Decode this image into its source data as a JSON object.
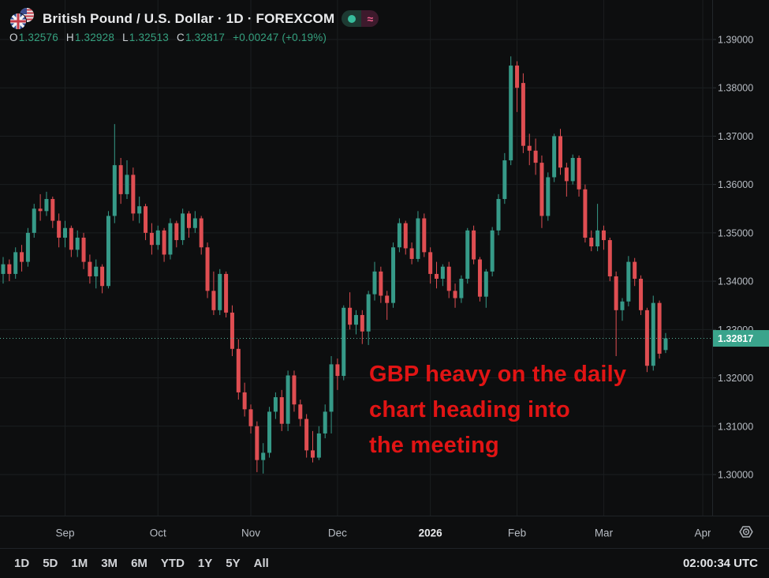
{
  "header": {
    "symbol_title": "British Pound / U.S. Dollar · 1D · FOREXCOM",
    "ohlc": {
      "o_label": "O",
      "o": "1.32576",
      "h_label": "H",
      "h": "1.32928",
      "l_label": "L",
      "l": "1.32513",
      "c_label": "C",
      "c": "1.32817",
      "change": "+0.00247 (+0.19%)"
    },
    "status": {
      "market_dot": "green",
      "data_mode_glyph": "≈"
    }
  },
  "annotation": {
    "lines": [
      "GBP heavy on the daily",
      "chart heading into",
      "the meeting"
    ],
    "color": "#e11414"
  },
  "toolbar": {
    "ranges": [
      "1D",
      "5D",
      "1M",
      "3M",
      "6M",
      "YTD",
      "1Y",
      "5Y",
      "All"
    ],
    "clock": "02:00:34 UTC"
  },
  "chart_data": {
    "type": "candlestick",
    "title": "British Pound / U.S. Dollar",
    "timeframe": "1D",
    "exchange": "FOREXCOM",
    "y_axis": {
      "tick_labels": [
        "1.39000",
        "1.38000",
        "1.37000",
        "1.36000",
        "1.35000",
        "1.34000",
        "1.33000",
        "1.32000",
        "1.31000",
        "1.30000"
      ],
      "range": [
        1.2915,
        1.3915
      ]
    },
    "x_axis": {
      "month_ticks": [
        {
          "label": "Sep",
          "index": 10,
          "strong": false
        },
        {
          "label": "Oct",
          "index": 25,
          "strong": false
        },
        {
          "label": "Nov",
          "index": 40,
          "strong": false
        },
        {
          "label": "Dec",
          "index": 54,
          "strong": false
        },
        {
          "label": "2026",
          "index": 69,
          "strong": true
        },
        {
          "label": "Feb",
          "index": 83,
          "strong": false
        },
        {
          "label": "Mar",
          "index": 97,
          "strong": false
        },
        {
          "label": "Apr",
          "index": 113,
          "strong": false
        }
      ]
    },
    "last_price": {
      "value": 1.32817,
      "label": "1.32817"
    },
    "colors": {
      "up": "#369a88",
      "down": "#df4e52",
      "last_price_line": "#55b39a",
      "badge_bg": "#3aa48c",
      "badge_text": "#ffffff",
      "grid": "#1b1e20",
      "axis_text": "#b7bcc3",
      "axis_border": "#22262a",
      "tick": "#2c3034"
    },
    "candles": [
      [
        1.3415,
        1.345,
        1.3395,
        1.3435
      ],
      [
        1.3435,
        1.3445,
        1.34,
        1.3415
      ],
      [
        1.3415,
        1.347,
        1.3405,
        1.346
      ],
      [
        1.346,
        1.3475,
        1.342,
        1.344
      ],
      [
        1.344,
        1.351,
        1.343,
        1.35
      ],
      [
        1.35,
        1.356,
        1.349,
        1.355
      ],
      [
        1.355,
        1.358,
        1.3525,
        1.3545
      ],
      [
        1.3545,
        1.3585,
        1.3535,
        1.357
      ],
      [
        1.357,
        1.3575,
        1.351,
        1.3525
      ],
      [
        1.3525,
        1.354,
        1.347,
        1.349
      ],
      [
        1.349,
        1.3525,
        1.347,
        1.351
      ],
      [
        1.351,
        1.3515,
        1.345,
        1.3465
      ],
      [
        1.3465,
        1.3505,
        1.345,
        1.349
      ],
      [
        1.349,
        1.35,
        1.3425,
        1.344
      ],
      [
        1.344,
        1.3455,
        1.3395,
        1.341
      ],
      [
        1.341,
        1.3445,
        1.3385,
        1.343
      ],
      [
        1.343,
        1.3435,
        1.3375,
        1.339
      ],
      [
        1.339,
        1.3545,
        1.3385,
        1.3535
      ],
      [
        1.3535,
        1.3725,
        1.352,
        1.364
      ],
      [
        1.364,
        1.3655,
        1.356,
        1.358
      ],
      [
        1.358,
        1.365,
        1.357,
        1.362
      ],
      [
        1.362,
        1.3635,
        1.3525,
        1.354
      ],
      [
        1.354,
        1.3575,
        1.352,
        1.3555
      ],
      [
        1.3555,
        1.356,
        1.3485,
        1.35
      ],
      [
        1.35,
        1.352,
        1.3455,
        1.3475
      ],
      [
        1.3475,
        1.3515,
        1.3465,
        1.3505
      ],
      [
        1.3505,
        1.351,
        1.344,
        1.3455
      ],
      [
        1.3455,
        1.353,
        1.3445,
        1.352
      ],
      [
        1.352,
        1.3525,
        1.347,
        1.3485
      ],
      [
        1.3485,
        1.355,
        1.3475,
        1.354
      ],
      [
        1.354,
        1.3545,
        1.349,
        1.351
      ],
      [
        1.351,
        1.3545,
        1.35,
        1.353
      ],
      [
        1.353,
        1.3535,
        1.3455,
        1.347
      ],
      [
        1.347,
        1.348,
        1.3365,
        1.338
      ],
      [
        1.338,
        1.342,
        1.333,
        1.334
      ],
      [
        1.334,
        1.3425,
        1.333,
        1.3415
      ],
      [
        1.3415,
        1.342,
        1.3325,
        1.3335
      ],
      [
        1.3335,
        1.335,
        1.3245,
        1.326
      ],
      [
        1.326,
        1.328,
        1.3155,
        1.317
      ],
      [
        1.317,
        1.319,
        1.312,
        1.3135
      ],
      [
        1.3135,
        1.3145,
        1.3085,
        1.31
      ],
      [
        1.31,
        1.311,
        1.3005,
        1.303
      ],
      [
        1.303,
        1.3065,
        1.3002,
        1.3045
      ],
      [
        1.3045,
        1.314,
        1.3035,
        1.313
      ],
      [
        1.313,
        1.317,
        1.3115,
        1.316
      ],
      [
        1.316,
        1.3175,
        1.309,
        1.3105
      ],
      [
        1.3105,
        1.3215,
        1.309,
        1.3205
      ],
      [
        1.3205,
        1.3215,
        1.313,
        1.3145
      ],
      [
        1.3145,
        1.3155,
        1.31,
        1.3115
      ],
      [
        1.3115,
        1.3125,
        1.3035,
        1.305
      ],
      [
        1.305,
        1.309,
        1.3025,
        1.3035
      ],
      [
        1.3035,
        1.31,
        1.303,
        1.3085
      ],
      [
        1.3085,
        1.3145,
        1.3075,
        1.313
      ],
      [
        1.313,
        1.3245,
        1.3085,
        1.3228
      ],
      [
        1.3228,
        1.324,
        1.3175,
        1.3204
      ],
      [
        1.3204,
        1.335,
        1.3195,
        1.3345
      ],
      [
        1.3345,
        1.3377,
        1.33,
        1.331
      ],
      [
        1.331,
        1.334,
        1.329,
        1.333
      ],
      [
        1.333,
        1.334,
        1.327,
        1.3296
      ],
      [
        1.3296,
        1.338,
        1.3268,
        1.3373
      ],
      [
        1.3373,
        1.344,
        1.336,
        1.342
      ],
      [
        1.342,
        1.343,
        1.3355,
        1.337
      ],
      [
        1.337,
        1.338,
        1.332,
        1.3355
      ],
      [
        1.3355,
        1.348,
        1.3345,
        1.347
      ],
      [
        1.347,
        1.353,
        1.346,
        1.352
      ],
      [
        1.352,
        1.3525,
        1.3455,
        1.3468
      ],
      [
        1.3468,
        1.348,
        1.3435,
        1.3446
      ],
      [
        1.3446,
        1.3545,
        1.344,
        1.353
      ],
      [
        1.353,
        1.354,
        1.345,
        1.346
      ],
      [
        1.346,
        1.347,
        1.3395,
        1.3415
      ],
      [
        1.3415,
        1.344,
        1.3385,
        1.3405
      ],
      [
        1.3405,
        1.3435,
        1.339,
        1.343
      ],
      [
        1.343,
        1.344,
        1.3365,
        1.338
      ],
      [
        1.338,
        1.3395,
        1.3345,
        1.3365
      ],
      [
        1.3365,
        1.3412,
        1.3355,
        1.3405
      ],
      [
        1.3405,
        1.351,
        1.3395,
        1.3505
      ],
      [
        1.3505,
        1.3515,
        1.3435,
        1.3445
      ],
      [
        1.3445,
        1.345,
        1.3358,
        1.3368
      ],
      [
        1.3368,
        1.3425,
        1.3345,
        1.342
      ],
      [
        1.342,
        1.3512,
        1.341,
        1.3505
      ],
      [
        1.3505,
        1.358,
        1.3495,
        1.357
      ],
      [
        1.357,
        1.3665,
        1.356,
        1.365
      ],
      [
        1.365,
        1.3865,
        1.364,
        1.3846
      ],
      [
        1.3846,
        1.3855,
        1.375,
        1.38
      ],
      [
        1.381,
        1.383,
        1.3665,
        1.368
      ],
      [
        1.368,
        1.3705,
        1.364,
        1.367
      ],
      [
        1.367,
        1.3695,
        1.362,
        1.3645
      ],
      [
        1.3645,
        1.366,
        1.351,
        1.3535
      ],
      [
        1.3535,
        1.3625,
        1.3525,
        1.3615
      ],
      [
        1.3615,
        1.3705,
        1.3605,
        1.37
      ],
      [
        1.37,
        1.3715,
        1.362,
        1.3635
      ],
      [
        1.3635,
        1.3645,
        1.3575,
        1.3607
      ],
      [
        1.3607,
        1.3662,
        1.36,
        1.3655
      ],
      [
        1.3655,
        1.366,
        1.3575,
        1.359
      ],
      [
        1.359,
        1.36,
        1.348,
        1.349
      ],
      [
        1.349,
        1.3505,
        1.3462,
        1.3472
      ],
      [
        1.3472,
        1.356,
        1.3462,
        1.3505
      ],
      [
        1.3505,
        1.3515,
        1.3465,
        1.3485
      ],
      [
        1.3485,
        1.349,
        1.34,
        1.341
      ],
      [
        1.341,
        1.342,
        1.3245,
        1.334
      ],
      [
        1.334,
        1.3365,
        1.3318,
        1.3358
      ],
      [
        1.3358,
        1.3452,
        1.3348,
        1.344
      ],
      [
        1.344,
        1.3448,
        1.339,
        1.3405
      ],
      [
        1.3405,
        1.3412,
        1.333,
        1.334
      ],
      [
        1.334,
        1.3345,
        1.3212,
        1.3225
      ],
      [
        1.3225,
        1.337,
        1.3215,
        1.3355
      ],
      [
        1.3355,
        1.336,
        1.324,
        1.325
      ],
      [
        1.32576,
        1.32928,
        1.32513,
        1.32817
      ]
    ]
  }
}
